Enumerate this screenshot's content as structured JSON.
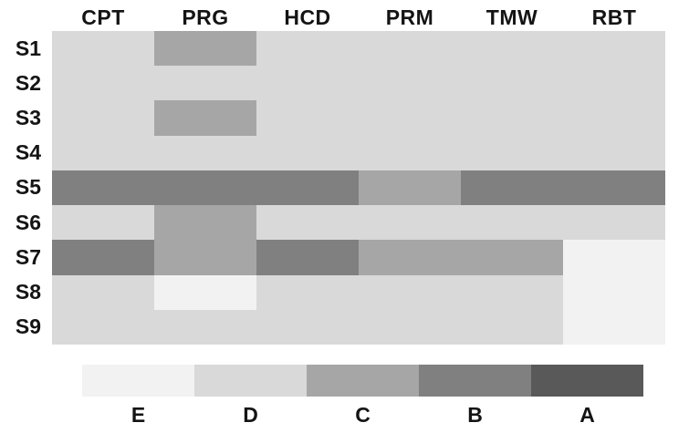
{
  "chart_data": {
    "type": "heatmap",
    "columns": [
      "CPT",
      "PRG",
      "HCD",
      "PRM",
      "TMW",
      "RBT"
    ],
    "rows": [
      "S1",
      "S2",
      "S3",
      "S4",
      "S5",
      "S6",
      "S7",
      "S8",
      "S9"
    ],
    "values": [
      [
        "D",
        "C",
        "D",
        "D",
        "D",
        "D"
      ],
      [
        "D",
        "D",
        "D",
        "D",
        "D",
        "D"
      ],
      [
        "D",
        "C",
        "D",
        "D",
        "D",
        "D"
      ],
      [
        "D",
        "D",
        "D",
        "D",
        "D",
        "D"
      ],
      [
        "B",
        "B",
        "B",
        "C",
        "B",
        "B"
      ],
      [
        "D",
        "C",
        "D",
        "D",
        "D",
        "D"
      ],
      [
        "B",
        "C",
        "B",
        "C",
        "C",
        "E"
      ],
      [
        "D",
        "E",
        "D",
        "D",
        "D",
        "E"
      ],
      [
        "D",
        "D",
        "D",
        "D",
        "D",
        "E"
      ]
    ],
    "legend_order": [
      "E",
      "D",
      "C",
      "B",
      "A"
    ],
    "palette": {
      "E": "#f2f2f2",
      "D": "#d9d9d9",
      "C": "#a6a6a6",
      "B": "#808080",
      "A": "#595959"
    },
    "background_color": "#ffffff",
    "text_color": "#141414",
    "legend_position": "bottom",
    "grid": false,
    "title": "",
    "xlabel": "",
    "ylabel": ""
  }
}
